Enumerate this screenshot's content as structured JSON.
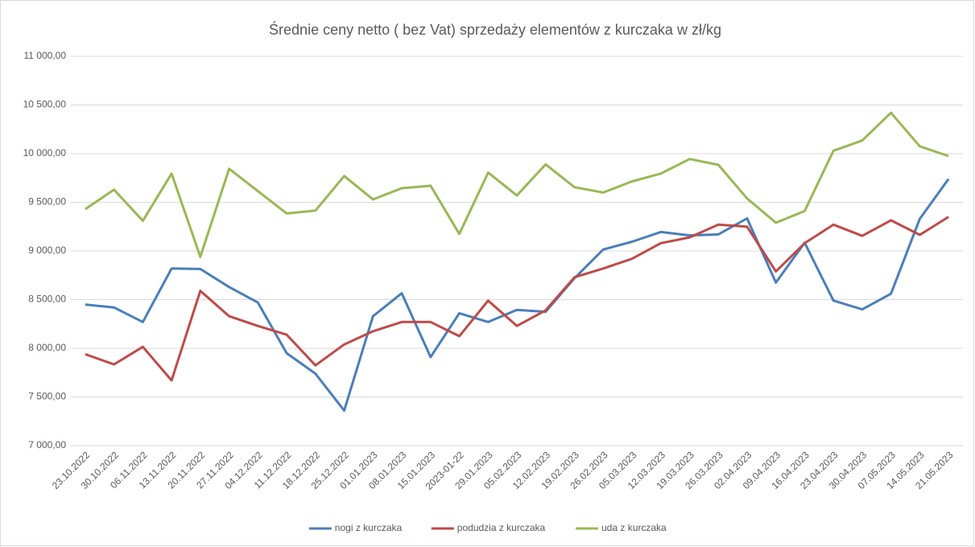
{
  "chart_data": {
    "type": "line",
    "title": "Średnie ceny netto ( bez Vat) sprzedaży elementów z kurczaka w zł/kg",
    "categories": [
      "23.10.2022",
      "30.10.2022",
      "06.11.2022",
      "13.11.2022",
      "20.11.2022",
      "27.11.2022",
      "04.12.2022",
      "11.12.2022",
      "18.12.2022",
      "25.12.2022",
      "01.01.2023",
      "08.01.2023",
      "15.01.2023",
      "2023-01-22",
      "29.01.2023",
      "05.02.2023",
      "12.02.2023",
      "19.02.2023",
      "26.02.2023",
      "05.03.2023",
      "12.03.2023",
      "19.03.2023",
      "26.03.2023",
      "02.04.2023",
      "09.04.2023",
      "16.04.2023",
      "23.04.2023",
      "30.04.2023",
      "07.05.2023",
      "14.05.2023",
      "21.05.2023"
    ],
    "series": [
      {
        "name": "nogi z kurczaka",
        "color": "#4a7ebb",
        "values": [
          8450,
          8420,
          8270,
          8820,
          8815,
          8630,
          8470,
          7950,
          7740,
          7360,
          8330,
          8565,
          7910,
          8360,
          8270,
          8395,
          8375,
          8720,
          9015,
          9095,
          9195,
          9160,
          9170,
          9335,
          8675,
          9085,
          8490,
          8400,
          8560,
          9330,
          9740
        ]
      },
      {
        "name": "podudzia z kurczaka",
        "color": "#be4b48",
        "values": [
          7940,
          7835,
          8015,
          7670,
          8590,
          8330,
          8230,
          8140,
          7825,
          8040,
          8175,
          8270,
          8270,
          8125,
          8490,
          8230,
          8390,
          8730,
          8820,
          8920,
          9080,
          9140,
          9270,
          9250,
          8790,
          9080,
          9270,
          9155,
          9315,
          9165,
          9350
        ]
      },
      {
        "name": "uda z kurczaka",
        "color": "#98b954",
        "values": [
          9430,
          9630,
          9310,
          9795,
          8940,
          9845,
          9615,
          9385,
          9415,
          9770,
          9530,
          9645,
          9670,
          9175,
          9805,
          9570,
          9890,
          9655,
          9600,
          9715,
          9795,
          9945,
          9885,
          9540,
          9290,
          9410,
          10030,
          10135,
          10420,
          10075,
          9975
        ]
      }
    ],
    "ylim": [
      7000,
      11000
    ],
    "yticks": [
      {
        "value": 7000,
        "label": "7 000,00"
      },
      {
        "value": 7500,
        "label": "7 500,00"
      },
      {
        "value": 8000,
        "label": "8 000,00"
      },
      {
        "value": 8500,
        "label": "8 500,00"
      },
      {
        "value": 9000,
        "label": "9 000,00"
      },
      {
        "value": 9500,
        "label": "9 500,00"
      },
      {
        "value": 10000,
        "label": "10 000,00"
      },
      {
        "value": 10500,
        "label": "10 500,00"
      },
      {
        "value": 11000,
        "label": "11 000,00"
      }
    ],
    "grid": true,
    "legend": "bottom"
  }
}
